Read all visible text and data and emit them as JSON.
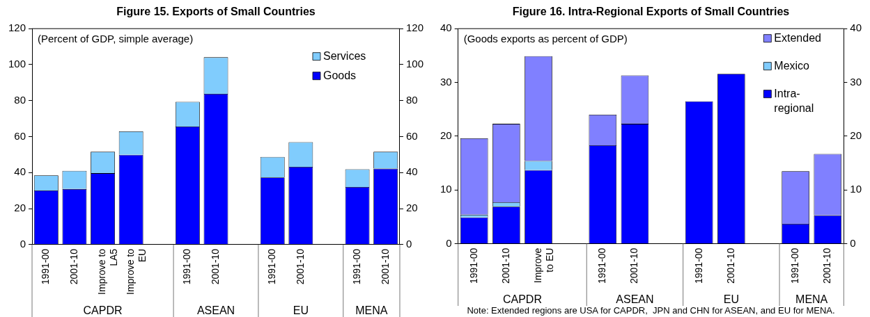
{
  "chart_data": [
    {
      "type": "bar",
      "title": "Figure 15. Exports of Small Countries",
      "subtitle": "(Percent of GDP, simple average)",
      "stacked": true,
      "categories": [
        "1991-00",
        "2001-10",
        "Improve to LA5",
        "Improve to EU",
        null,
        "1991-00",
        "2001-10",
        null,
        "1991-00",
        "2001-10",
        null,
        "1991-00",
        "2001-10"
      ],
      "series": [
        {
          "name": "Goods",
          "color": "#0000ff",
          "values": [
            30.1,
            30.9,
            39.7,
            49.9,
            null,
            65.6,
            83.8,
            null,
            37.3,
            43.2,
            null,
            32.0,
            42.2
          ]
        },
        {
          "name": "Services",
          "color": "#80ccfd",
          "values": [
            8.4,
            10.1,
            11.9,
            13.0,
            null,
            13.7,
            20.3,
            null,
            11.4,
            13.7,
            null,
            9.9,
            9.4
          ]
        }
      ],
      "annotations": [
        "CAPDR",
        "ASEAN",
        "EU",
        "MENA"
      ],
      "ylim": [
        0,
        120
      ],
      "yticks": [
        0,
        20,
        40,
        60,
        80,
        100,
        120
      ],
      "y2lim": [
        0,
        120
      ],
      "y2ticks": [
        0,
        20,
        40,
        60,
        80,
        100,
        120
      ],
      "grid": false,
      "legend": "top right"
    },
    {
      "type": "bar",
      "title": "Figure 16. Intra-Regional Exports of Small Countries",
      "subtitle": "(Goods exports as percent of GDP)",
      "stacked": true,
      "categories": [
        "1991-00",
        "2001-10",
        "Improve to EU",
        null,
        "1991-00",
        "2001-10",
        null,
        "1991-00",
        "2001-10",
        null,
        "1991-00",
        "2001-10"
      ],
      "series": [
        {
          "name": "Intra-regional",
          "color": "#0000ff",
          "values": [
            4.9,
            6.9,
            13.7,
            null,
            18.3,
            22.3,
            null,
            26.5,
            31.6,
            null,
            3.7,
            5.3
          ]
        },
        {
          "name": "Mexico",
          "color": "#80ccfd",
          "values": [
            0.5,
            0.8,
            1.7,
            null,
            null,
            null,
            null,
            null,
            null,
            null,
            null,
            null
          ]
        },
        {
          "name": "Extended",
          "color": "#8080ff",
          "values": [
            14.2,
            14.6,
            19.5,
            null,
            5.7,
            9.0,
            null,
            null,
            null,
            null,
            9.8,
            11.4
          ]
        }
      ],
      "annotations": [
        "CAPDR",
        "ASEAN",
        "EU",
        "MENA",
        "Note: Extended regions are USA for CAPDR,  JPN and CHN for ASEAN, and EU for MENA."
      ],
      "ylim": [
        0,
        40
      ],
      "yticks": [
        0,
        10,
        20,
        30,
        40
      ],
      "y2lim": [
        0,
        40
      ],
      "y2ticks": [
        0,
        10,
        20,
        30,
        40
      ],
      "grid": false,
      "legend": "top right"
    }
  ]
}
